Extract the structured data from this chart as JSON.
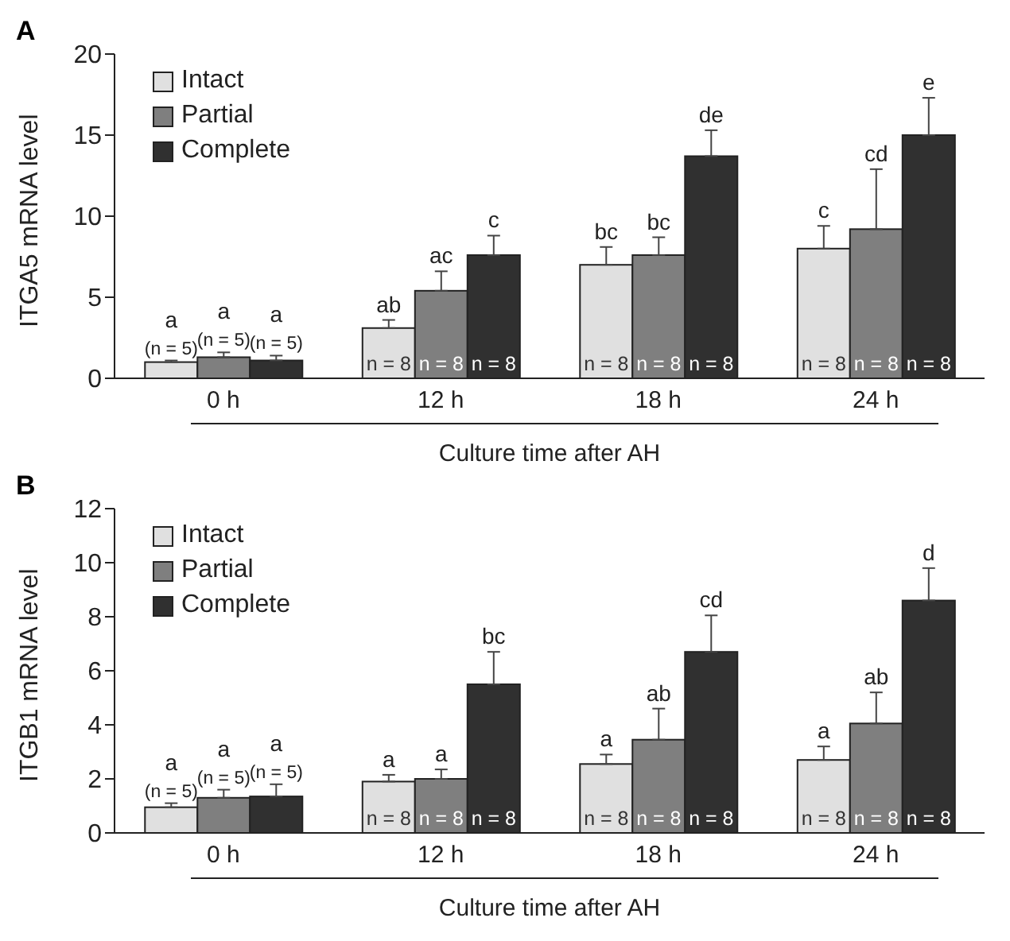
{
  "chart_data": [
    {
      "type": "bar",
      "title": "A",
      "ylabel": "ITGA5 mRNA level",
      "xlabel": "Culture time after AH",
      "categories": [
        "0 h",
        "12 h",
        "18 h",
        "24 h"
      ],
      "ylim": [
        0,
        20
      ],
      "yticks": [
        0,
        5,
        10,
        15,
        20
      ],
      "legend": "top left",
      "grid": false,
      "series": [
        {
          "name": "Intact",
          "color": "#e0e0e0",
          "values": [
            1.0,
            3.1,
            7.0,
            8.0
          ],
          "errors": [
            [
              1.0,
              1.1
            ],
            [
              3.1,
              3.6
            ],
            [
              7.0,
              8.1
            ],
            [
              8.0,
              9.4
            ]
          ],
          "value_labels": [
            "a",
            "ab",
            "bc",
            "c"
          ]
        },
        {
          "name": "Partial",
          "color": "#7f7f7f",
          "values": [
            1.3,
            5.4,
            7.6,
            9.2
          ],
          "errors": [
            [
              1.3,
              1.6
            ],
            [
              5.4,
              6.6
            ],
            [
              7.6,
              8.7
            ],
            [
              9.2,
              12.9
            ]
          ],
          "value_labels": [
            "a",
            "ac",
            "bc",
            "cd"
          ]
        },
        {
          "name": "Complete",
          "color": "#303030",
          "values": [
            1.1,
            7.6,
            13.7,
            15.0
          ],
          "errors": [
            [
              1.1,
              1.4
            ],
            [
              7.6,
              8.8
            ],
            [
              13.7,
              15.3
            ],
            [
              15.0,
              17.3
            ]
          ],
          "value_labels": [
            "a",
            "c",
            "de",
            "e"
          ]
        }
      ],
      "annotations": [
        {
          "text": "(n = 5)",
          "x": "0 h",
          "y": 1.1
        },
        {
          "text": "(n = 5)",
          "x": "0 h",
          "y": 1.6
        },
        {
          "text": "(n = 5)",
          "x": "0 h",
          "y": 1.4
        },
        {
          "text": "n = 8",
          "x": "12 h",
          "y": 0
        },
        {
          "text": "n = 8",
          "x": "12 h",
          "y": 0
        },
        {
          "text": "n = 8",
          "x": "12 h",
          "y": 0
        },
        {
          "text": "n = 8",
          "x": "18 h",
          "y": 0
        },
        {
          "text": "n = 8",
          "x": "18 h",
          "y": 0
        },
        {
          "text": "n = 8",
          "x": "18 h",
          "y": 0
        },
        {
          "text": "n = 8",
          "x": "24 h",
          "y": 0
        },
        {
          "text": "n = 8",
          "x": "24 h",
          "y": 0
        },
        {
          "text": "n = 8",
          "x": "24 h",
          "y": 0
        }
      ]
    },
    {
      "type": "bar",
      "title": "B",
      "ylabel": "ITGB1 mRNA level",
      "xlabel": "Culture time after AH",
      "categories": [
        "0 h",
        "12 h",
        "18 h",
        "24 h"
      ],
      "ylim": [
        0,
        12
      ],
      "yticks": [
        0,
        2,
        4,
        6,
        8,
        10,
        12
      ],
      "legend": "top left",
      "grid": false,
      "series": [
        {
          "name": "Intact",
          "color": "#e0e0e0",
          "values": [
            0.95,
            1.9,
            2.55,
            2.7
          ],
          "errors": [
            [
              0.95,
              1.1
            ],
            [
              1.9,
              2.15
            ],
            [
              2.55,
              2.9
            ],
            [
              2.7,
              3.2
            ]
          ],
          "value_labels": [
            "a",
            "a",
            "a",
            "a"
          ]
        },
        {
          "name": "Partial",
          "color": "#7f7f7f",
          "values": [
            1.3,
            2.0,
            3.45,
            4.05
          ],
          "errors": [
            [
              1.3,
              1.6
            ],
            [
              2.0,
              2.35
            ],
            [
              3.45,
              4.6
            ],
            [
              4.05,
              5.2
            ]
          ],
          "value_labels": [
            "a",
            "a",
            "ab",
            "ab"
          ]
        },
        {
          "name": "Complete",
          "color": "#303030",
          "values": [
            1.35,
            5.5,
            6.7,
            8.6
          ],
          "errors": [
            [
              1.35,
              1.8
            ],
            [
              5.5,
              6.7
            ],
            [
              6.7,
              8.05
            ],
            [
              8.6,
              9.8
            ]
          ],
          "value_labels": [
            "a",
            "bc",
            "cd",
            "d"
          ]
        }
      ],
      "annotations": [
        {
          "text": "(n = 5)",
          "x": "0 h",
          "y": 1.1
        },
        {
          "text": "(n = 5)",
          "x": "0 h",
          "y": 1.6
        },
        {
          "text": "(n = 5)",
          "x": "0 h",
          "y": 1.8
        },
        {
          "text": "n = 8",
          "x": "12 h",
          "y": 0
        },
        {
          "text": "n = 8",
          "x": "12 h",
          "y": 0
        },
        {
          "text": "n = 8",
          "x": "12 h",
          "y": 0
        },
        {
          "text": "n = 8",
          "x": "18 h",
          "y": 0
        },
        {
          "text": "n = 8",
          "x": "18 h",
          "y": 0
        },
        {
          "text": "n = 8",
          "x": "18 h",
          "y": 0
        },
        {
          "text": "n = 8",
          "x": "24 h",
          "y": 0
        },
        {
          "text": "n = 8",
          "x": "24 h",
          "y": 0
        },
        {
          "text": "n = 8",
          "x": "24 h",
          "y": 0
        }
      ]
    }
  ]
}
